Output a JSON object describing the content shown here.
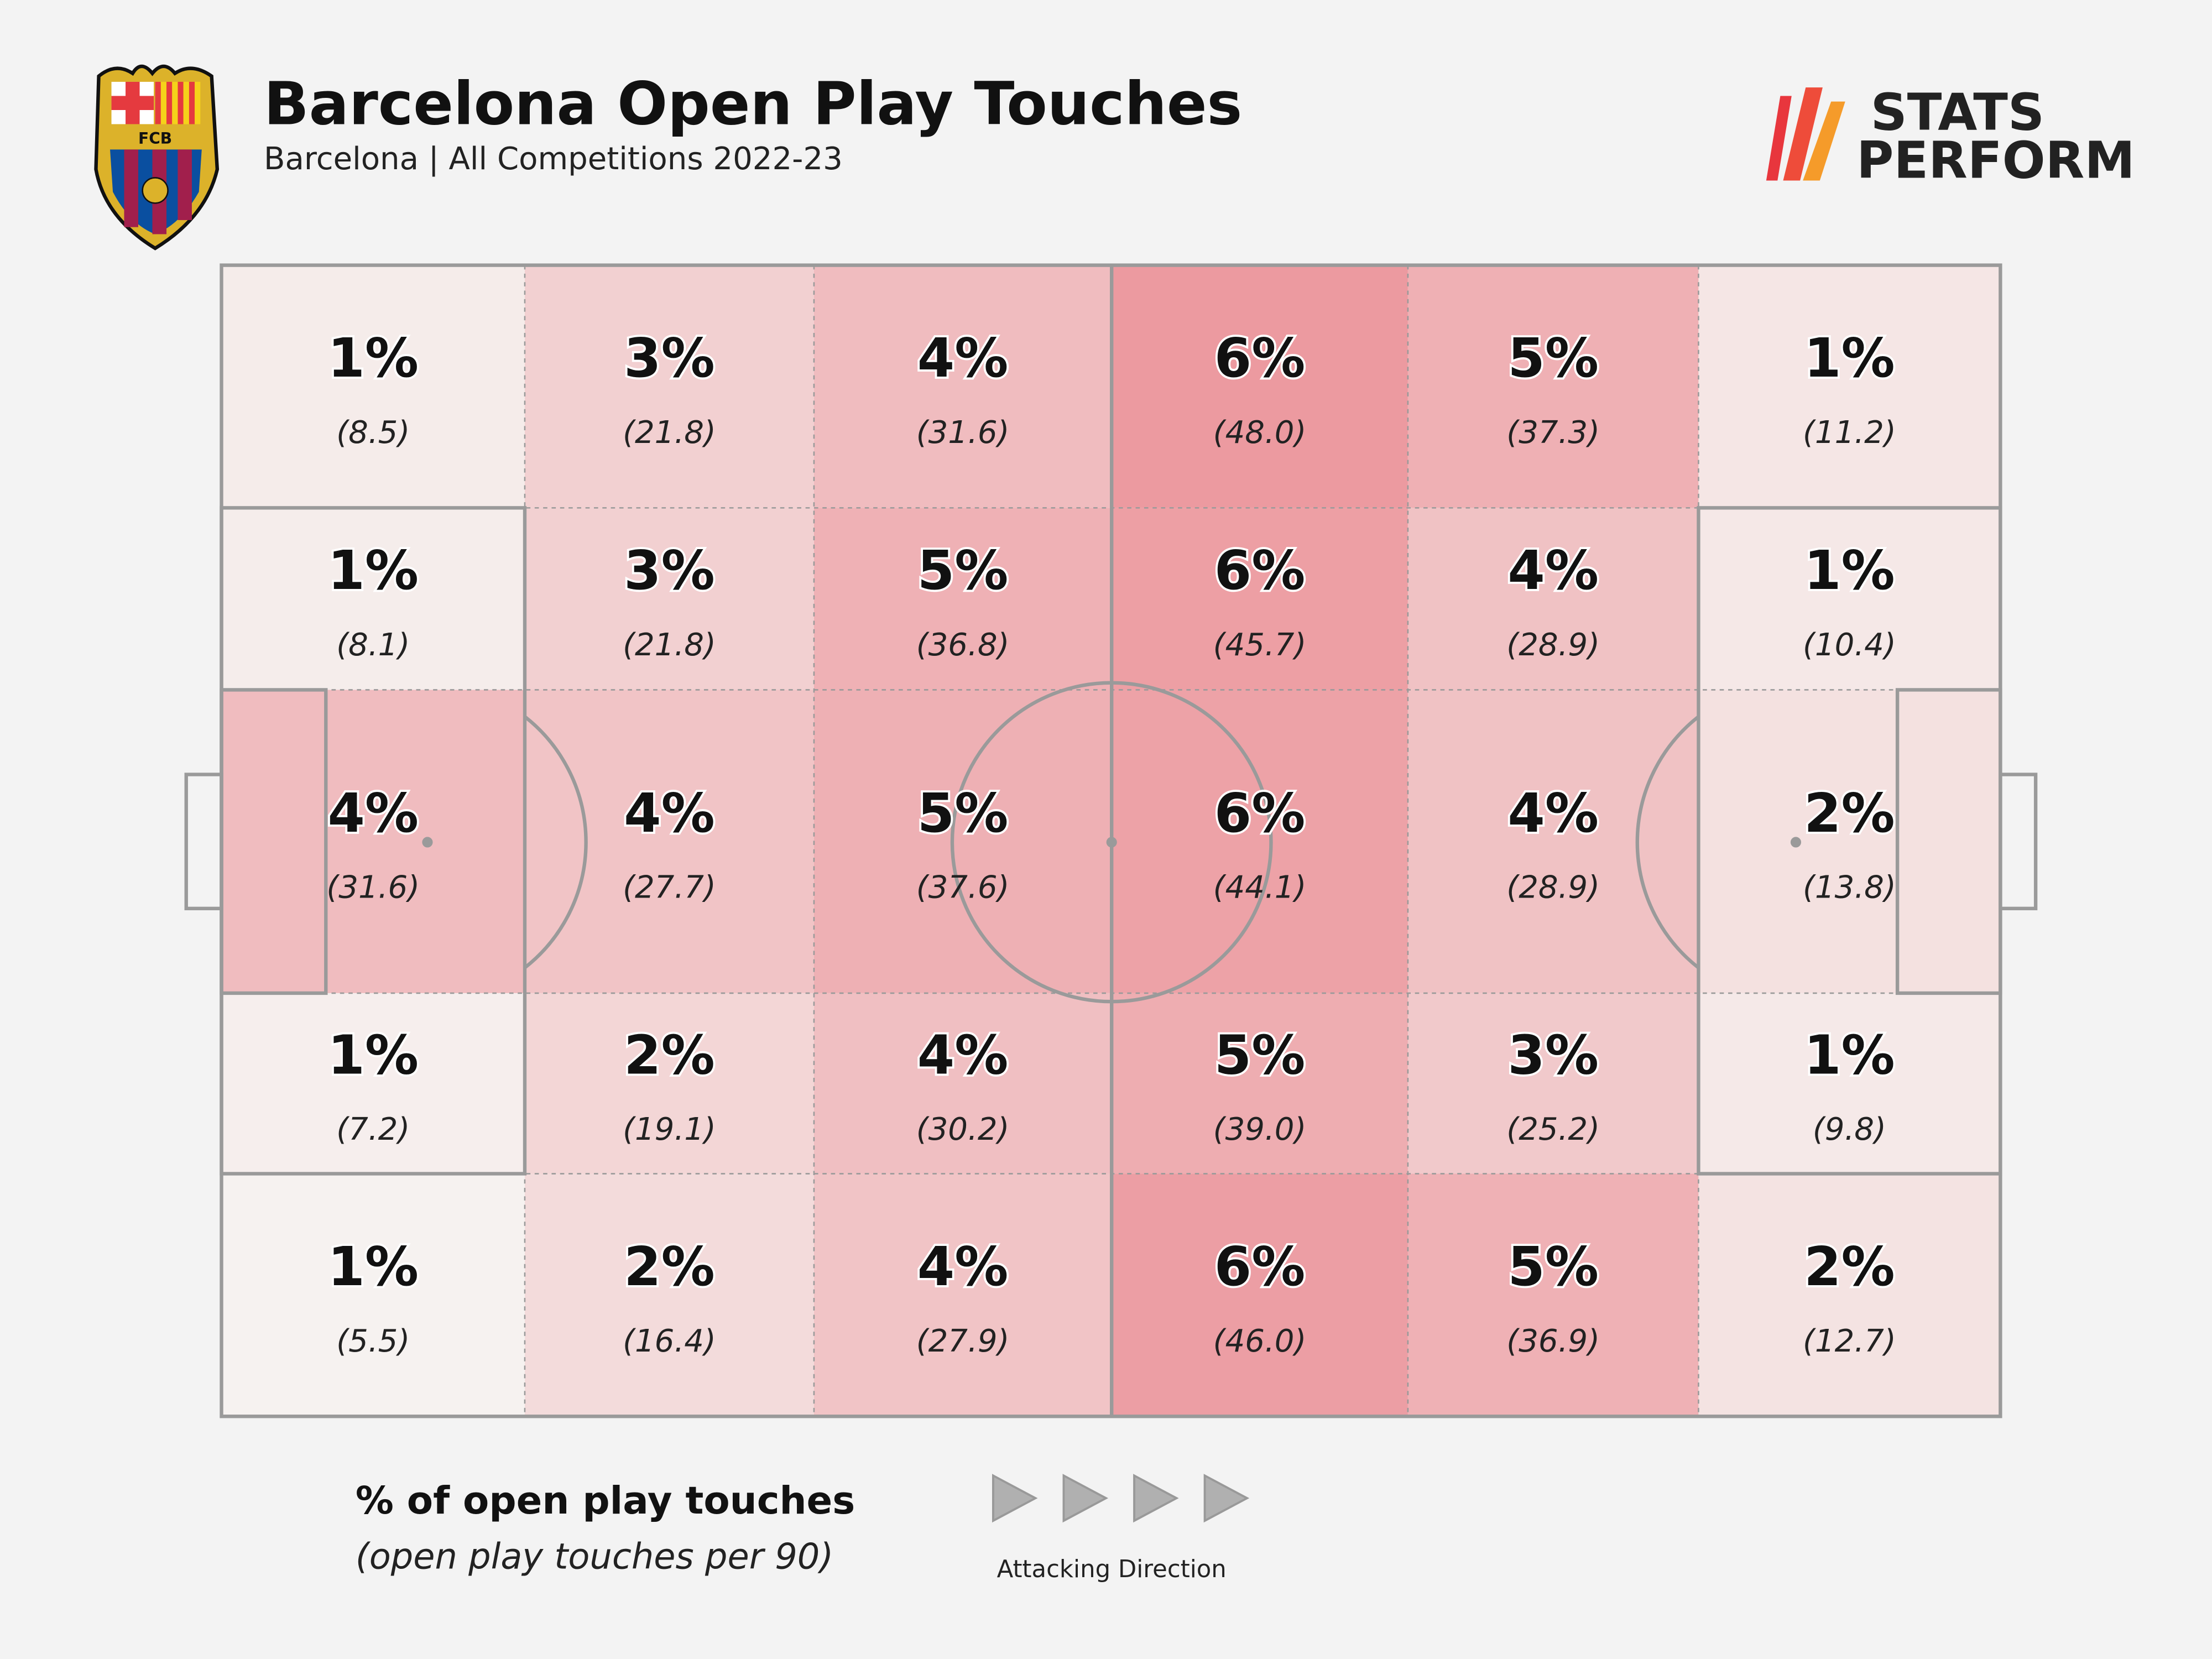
{
  "header": {
    "title": "Barcelona Open Play Touches",
    "subtitle": "Barcelona | All Competitions 2022-23",
    "crest_text": "FCB",
    "brand_line1": "STATS",
    "brand_line2": "PERFORM"
  },
  "legend": {
    "main": "% of open play touches",
    "sub": "(open play touches per 90)",
    "direction_label": "Attacking Direction",
    "direction_icon": "play-triangle-icon"
  },
  "colors": {
    "background": "#f3f3f3",
    "low": "#f6f2f0",
    "high": "#ec9aa0",
    "lines": "#9a9a9a",
    "brand_red": "#e8363d",
    "brand_orange": "#f59b2a"
  },
  "chart_data": {
    "type": "heatmap",
    "title": "Barcelona Open Play Touches",
    "subtitle": "Barcelona | All Competitions 2022-23",
    "attacking_direction": "left-to-right",
    "rows": 5,
    "columns": 6,
    "cells": [
      [
        {
          "pct": "1%",
          "per90": "(8.5)",
          "value": 8.5
        },
        {
          "pct": "3%",
          "per90": "(21.8)",
          "value": 21.8
        },
        {
          "pct": "4%",
          "per90": "(31.6)",
          "value": 31.6
        },
        {
          "pct": "6%",
          "per90": "(48.0)",
          "value": 48.0
        },
        {
          "pct": "5%",
          "per90": "(37.3)",
          "value": 37.3
        },
        {
          "pct": "1%",
          "per90": "(11.2)",
          "value": 11.2
        }
      ],
      [
        {
          "pct": "1%",
          "per90": "(8.1)",
          "value": 8.1
        },
        {
          "pct": "3%",
          "per90": "(21.8)",
          "value": 21.8
        },
        {
          "pct": "5%",
          "per90": "(36.8)",
          "value": 36.8
        },
        {
          "pct": "6%",
          "per90": "(45.7)",
          "value": 45.7
        },
        {
          "pct": "4%",
          "per90": "(28.9)",
          "value": 28.9
        },
        {
          "pct": "1%",
          "per90": "(10.4)",
          "value": 10.4
        }
      ],
      [
        {
          "pct": "4%",
          "per90": "(31.6)",
          "value": 31.6
        },
        {
          "pct": "4%",
          "per90": "(27.7)",
          "value": 27.7
        },
        {
          "pct": "5%",
          "per90": "(37.6)",
          "value": 37.6
        },
        {
          "pct": "6%",
          "per90": "(44.1)",
          "value": 44.1
        },
        {
          "pct": "4%",
          "per90": "(28.9)",
          "value": 28.9
        },
        {
          "pct": "2%",
          "per90": "(13.8)",
          "value": 13.8
        }
      ],
      [
        {
          "pct": "1%",
          "per90": "(7.2)",
          "value": 7.2
        },
        {
          "pct": "2%",
          "per90": "(19.1)",
          "value": 19.1
        },
        {
          "pct": "4%",
          "per90": "(30.2)",
          "value": 30.2
        },
        {
          "pct": "5%",
          "per90": "(39.0)",
          "value": 39.0
        },
        {
          "pct": "3%",
          "per90": "(25.2)",
          "value": 25.2
        },
        {
          "pct": "1%",
          "per90": "(9.8)",
          "value": 9.8
        }
      ],
      [
        {
          "pct": "1%",
          "per90": "(5.5)",
          "value": 5.5
        },
        {
          "pct": "2%",
          "per90": "(16.4)",
          "value": 16.4
        },
        {
          "pct": "4%",
          "per90": "(27.9)",
          "value": 27.9
        },
        {
          "pct": "6%",
          "per90": "(46.0)",
          "value": 46.0
        },
        {
          "pct": "5%",
          "per90": "(36.9)",
          "value": 36.9
        },
        {
          "pct": "2%",
          "per90": "(12.7)",
          "value": 12.7
        }
      ]
    ]
  }
}
